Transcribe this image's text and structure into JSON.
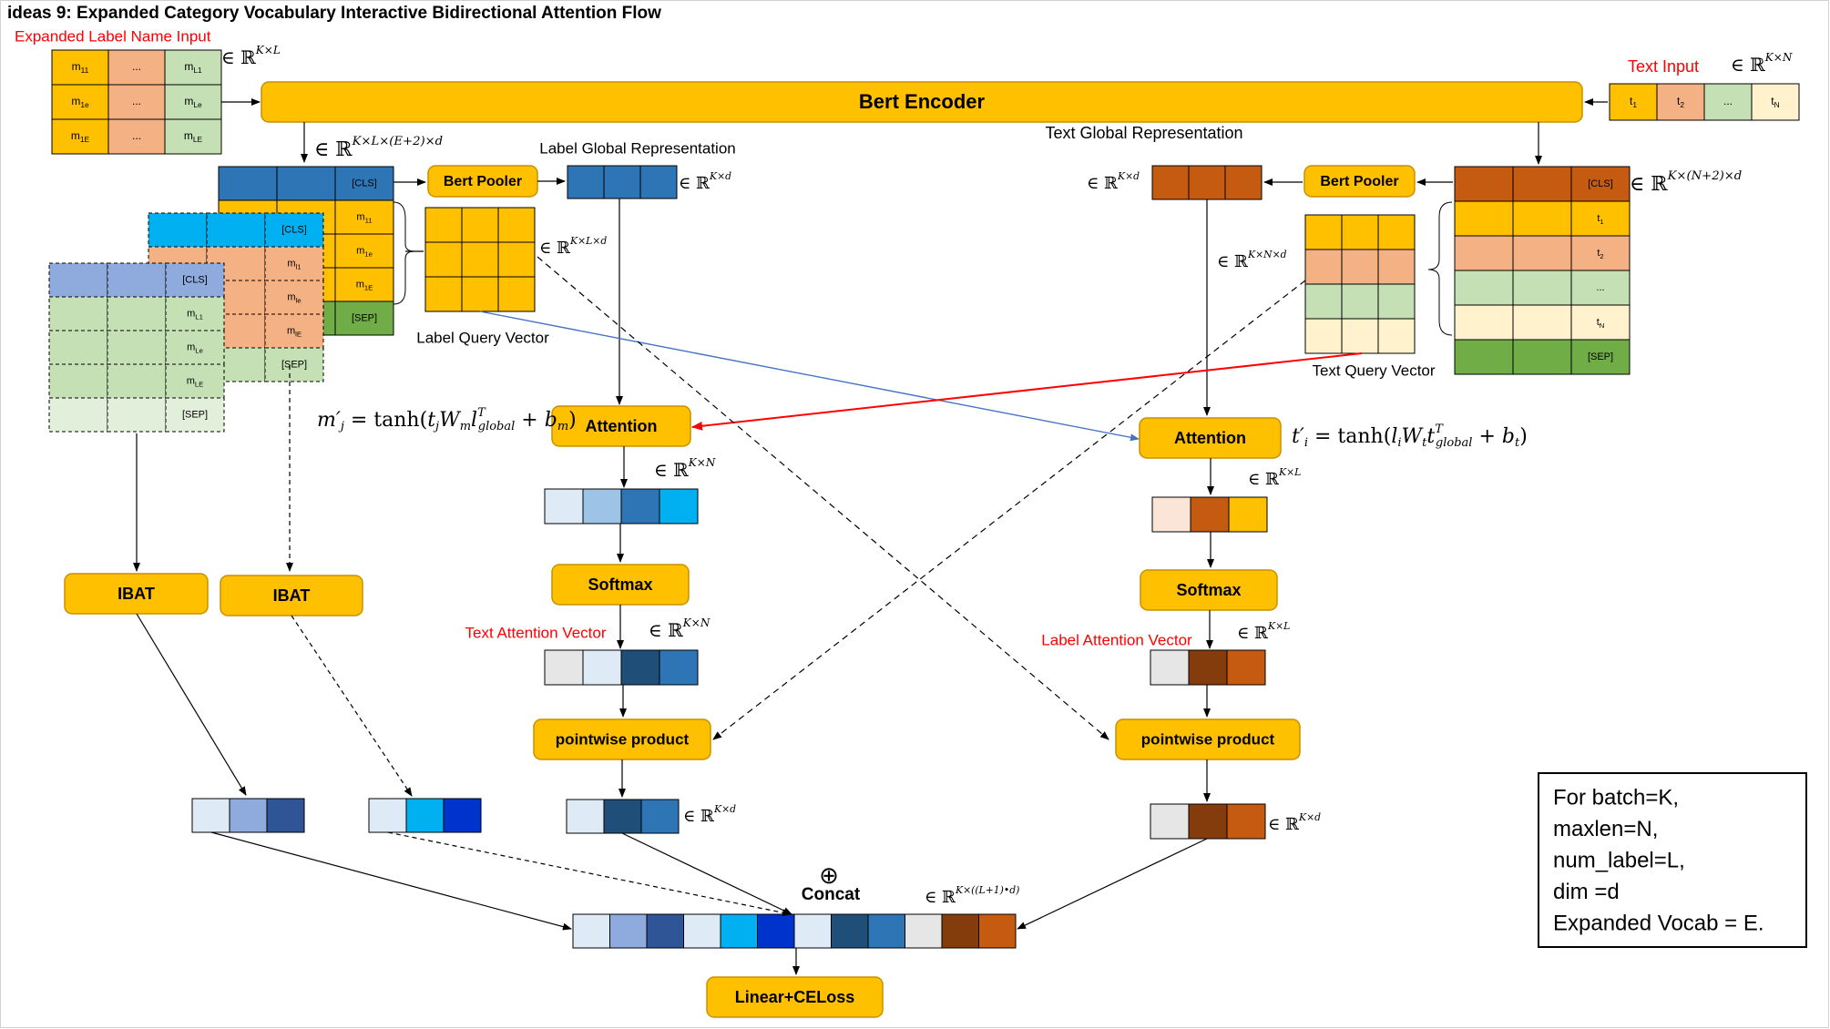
{
  "title": "ideas 9: Expanded Category Vocabulary Interactive Bidirectional Attention Flow",
  "labels": {
    "expanded_input": "Expanded Label Name Input",
    "text_input": "Text Input",
    "text_global_rep": "Text Global Representation",
    "label_global_rep": "Label Global Representation",
    "label_query_vector": "Label Query Vector",
    "text_query_vector": "Text Query Vector",
    "text_attention_vector": "Text Attention Vector",
    "label_attention_vector": "Label Attention Vector"
  },
  "boxes": {
    "bert_encoder": "Bert Encoder",
    "bert_pooler": "Bert Pooler",
    "attention": "Attention",
    "softmax": "Softmax",
    "pointwise": "pointwise product",
    "ibat": "IBAT",
    "concat": "Concat",
    "concat_symbol": "⊕",
    "linear": "Linear+CELoss"
  },
  "tokens": {
    "cls": "[CLS]",
    "sep": "[SEP]",
    "dots": "...",
    "dots_small": "…",
    "label_grid": [
      [
        "m11",
        "...",
        "mL1"
      ],
      [
        "m1e",
        "...",
        "mLe"
      ],
      [
        "m1E",
        "...",
        "mLE"
      ]
    ],
    "label_column": [
      "m11",
      "m1e",
      "m1E"
    ],
    "label_column_L": [
      "mL1",
      "mLe",
      "mLE"
    ],
    "label_column_l": [
      "ml1",
      "mle",
      "mlE"
    ],
    "text_input": [
      "t1",
      "t2",
      "...",
      "tN"
    ],
    "text_column": [
      "t1",
      "t2",
      "...",
      "tN"
    ]
  },
  "dims": {
    "KxL": "∈ ℝ^{K×L}",
    "KxN": "∈ ℝ^{K×N}",
    "KxLxE2xd": "∈ ℝ^{K×L×(E+2)×d}",
    "Kxd": "∈ ℝ^{K×d}",
    "KxLxd": "∈ ℝ^{K×L×d}",
    "KxN2xd": "∈ ℝ^{K×(N+2)×d}",
    "KxNxd": "∈ ℝ^{K×N×d}",
    "KxL1d": "∈ ℝ^{K×((L+1)•d)}"
  },
  "equations": {
    "m_prime": "m′_j = tanh(t_j W_m l^T_global + b_m)",
    "t_prime": "t′_i = tanh(l_i W_t t^T_global + b_t)"
  },
  "legend": [
    "For batch=K,",
    "maxlen=N,",
    "num_label=L,",
    "dim =d",
    "Expanded Vocab = E."
  ],
  "colors": {
    "gold": "#ffc000",
    "gold_border": "#c79100",
    "blue": "#2e75b6",
    "dark_blue": "#1f4e79",
    "cyan": "#00b0f0",
    "light_blue": "#9dc3e6",
    "pale_blue": "#deebf7",
    "periwinkle": "#8faadc",
    "royal_blue": "#0033cc",
    "navy": "#2f5597",
    "orange": "#c55a11",
    "salmon": "#f4b183",
    "pale_orange": "#fbe5d6",
    "brown": "#843c0c",
    "light_green": "#c5e0b4",
    "green": "#70ad47",
    "pale_yellow": "#fff2cc",
    "grey": "#e7e6e6",
    "red": "#ff0000",
    "arrow_blue": "#4472c4"
  }
}
